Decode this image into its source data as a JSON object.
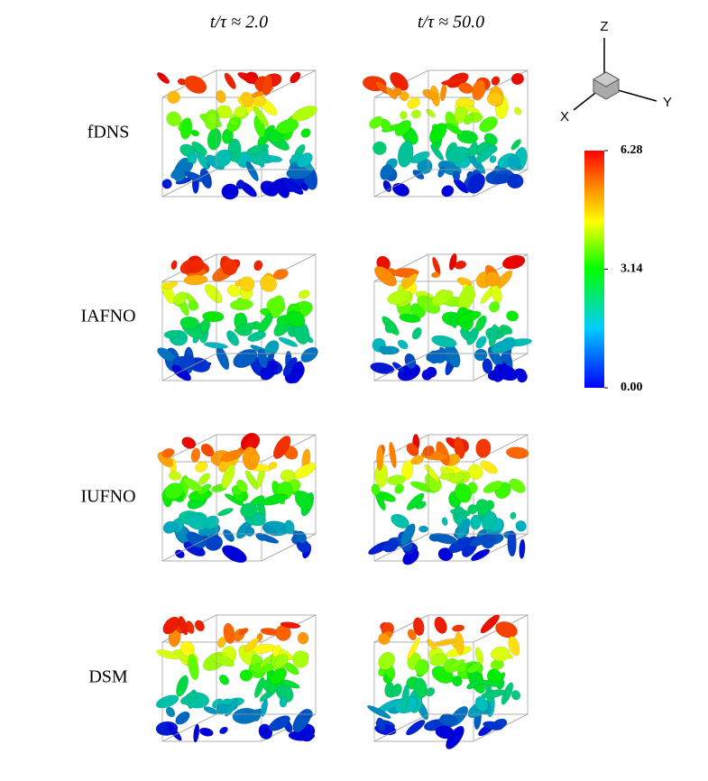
{
  "columns": [
    "t/τ ≈ 2.0",
    "t/τ ≈ 50.0"
  ],
  "rows": [
    "fDNS",
    "IAFNO",
    "IUFNO",
    "DSM"
  ],
  "axes": {
    "x": "X",
    "y": "Y",
    "z": "Z"
  },
  "colorbar": {
    "range": [
      0,
      6.28
    ],
    "ticks": [
      {
        "value": 0,
        "label": "0.00"
      },
      3.14,
      6.28
    ]
  }
}
